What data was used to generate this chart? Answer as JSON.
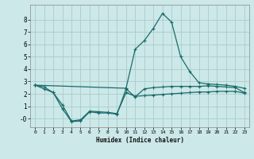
{
  "xlabel": "Humidex (Indice chaleur)",
  "bg_color": "#cce8e8",
  "grid_color": "#aacccc",
  "line_color": "#1a6b6b",
  "xlim": [
    -0.5,
    23.5
  ],
  "ylim": [
    -0.7,
    9.2
  ],
  "ytick_vals": [
    0,
    1,
    2,
    3,
    4,
    5,
    6,
    7,
    8
  ],
  "ytick_labels": [
    "-0",
    "1",
    "2",
    "3",
    "4",
    "5",
    "6",
    "7",
    "8"
  ],
  "xtick_vals": [
    0,
    1,
    2,
    3,
    4,
    5,
    6,
    7,
    8,
    9,
    10,
    11,
    12,
    13,
    14,
    15,
    16,
    17,
    18,
    19,
    20,
    21,
    22,
    23
  ],
  "xtick_labels": [
    "0",
    "1",
    "2",
    "3",
    "4",
    "5",
    "6",
    "7",
    "8",
    "9",
    "10",
    "11",
    "12",
    "13",
    "14",
    "15",
    "16",
    "17",
    "18",
    "19",
    "20",
    "21",
    "22",
    "23"
  ],
  "series": [
    {
      "x": [
        0,
        1,
        2,
        3,
        4,
        5,
        6,
        7,
        8,
        9,
        10,
        11,
        12,
        13,
        14,
        15,
        16,
        17,
        18,
        19,
        20,
        21,
        22,
        23
      ],
      "y": [
        2.7,
        2.55,
        2.1,
        0.8,
        -0.25,
        -0.2,
        0.55,
        0.45,
        0.45,
        0.35,
        2.4,
        1.75,
        2.4,
        2.5,
        2.55,
        2.6,
        2.6,
        2.6,
        2.6,
        2.65,
        2.6,
        2.55,
        2.5,
        2.1
      ]
    },
    {
      "x": [
        0,
        1,
        2,
        3,
        4,
        5,
        6,
        7,
        8,
        9,
        10,
        11,
        12,
        13,
        14,
        15,
        16,
        17,
        18,
        19,
        20,
        21,
        22,
        23
      ],
      "y": [
        2.7,
        2.4,
        2.1,
        1.1,
        -0.2,
        -0.1,
        0.6,
        0.55,
        0.5,
        0.4,
        2.1,
        1.8,
        1.85,
        1.9,
        1.95,
        2.0,
        2.05,
        2.1,
        2.15,
        2.15,
        2.2,
        2.2,
        2.2,
        2.05
      ]
    },
    {
      "x": [
        0,
        10,
        11,
        12,
        13,
        14,
        15,
        16,
        17,
        18,
        19,
        20,
        21,
        22,
        23
      ],
      "y": [
        2.7,
        2.45,
        5.6,
        6.3,
        7.3,
        8.5,
        7.8,
        5.0,
        3.8,
        2.9,
        2.8,
        2.75,
        2.7,
        2.6,
        2.45
      ]
    }
  ]
}
